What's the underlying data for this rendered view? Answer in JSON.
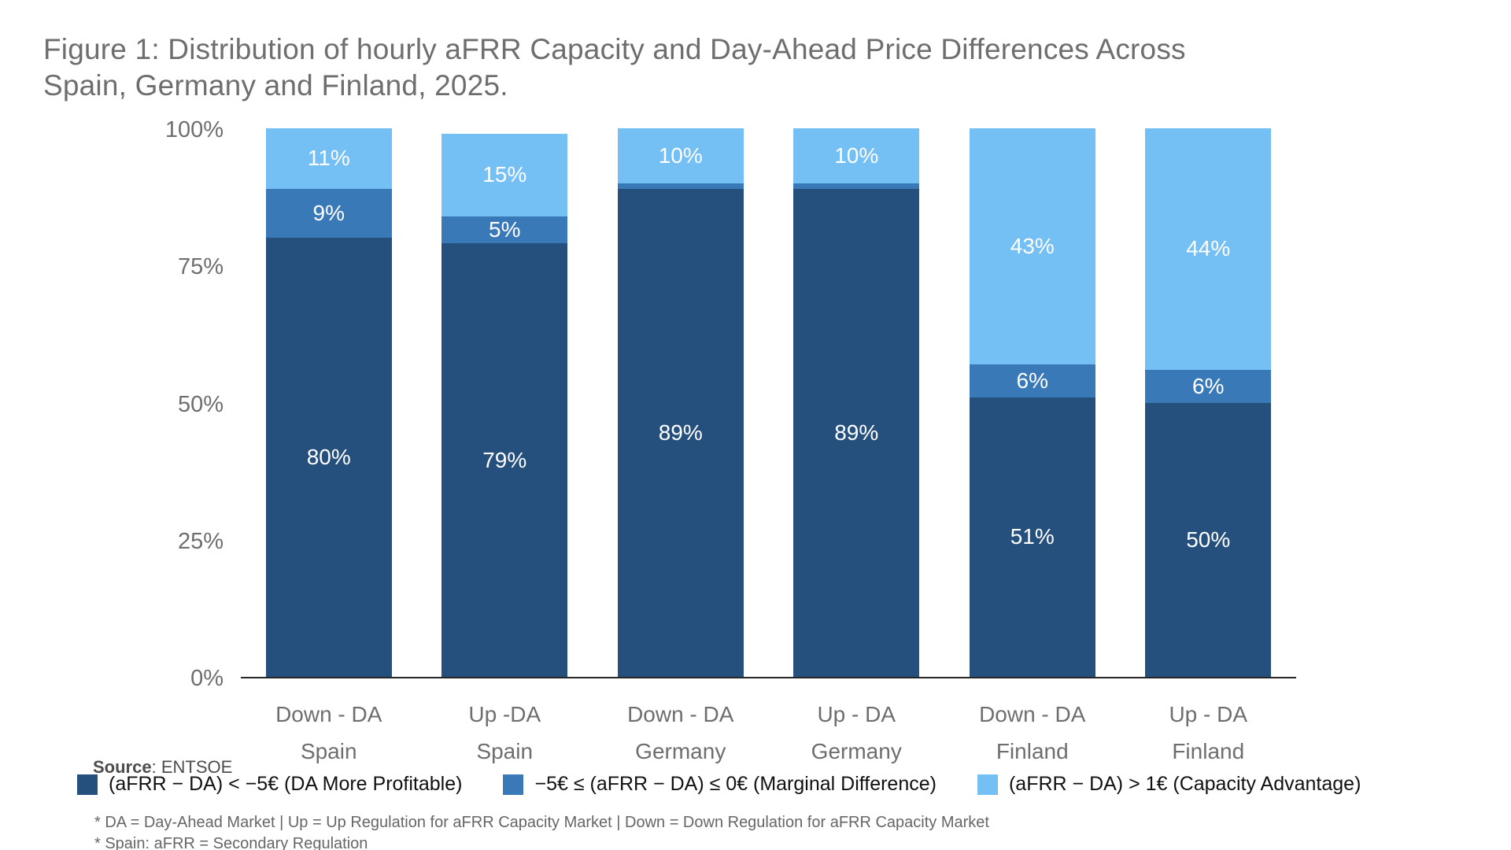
{
  "figure": {
    "title_line1": "Figure 1: Distribution of hourly aFRR Capacity and Day-Ahead Price Differences Across",
    "title_line2": "Spain, Germany and Finland, 2025."
  },
  "source": {
    "label": "Source",
    "separator": ": ",
    "value": "ENTSOE"
  },
  "footnotes": [
    "* DA = Day-Ahead Market | Up = Up Regulation for aFRR Capacity Market | Down = Down Regulation for aFRR Capacity Market",
    "* Spain: aFRR = Secondary Regulation"
  ],
  "chart_data": {
    "type": "bar",
    "stacked": true,
    "orientation": "vertical",
    "title": "Figure 1: Distribution of hourly aFRR Capacity and Day-Ahead Price Differences Across Spain, Germany and Finland, 2025.",
    "categories": [
      [
        "Down - DA",
        "Spain"
      ],
      [
        "Up -DA",
        "Spain"
      ],
      [
        "Down - DA",
        "Germany"
      ],
      [
        "Up - DA",
        "Germany"
      ],
      [
        "Down - DA",
        "Finland"
      ],
      [
        "Up - DA",
        "Finland"
      ]
    ],
    "series": [
      {
        "name": "(aFRR − DA) < −5€ (DA More Profitable)",
        "color": "#25507D",
        "values": [
          80,
          79,
          89,
          89,
          51,
          50
        ]
      },
      {
        "name": "−5€ ≤ (aFRR − DA) ≤ 0€ (Marginal Difference)",
        "color": "#3A79B8",
        "values": [
          9,
          5,
          1,
          1,
          6,
          6
        ]
      },
      {
        "name": "(aFRR − DA) > 1€ (Capacity Advantage)",
        "color": "#74BFF4",
        "values": [
          11,
          15,
          10,
          10,
          43,
          44
        ]
      }
    ],
    "value_label_suffix": "%",
    "ytick_values": [
      0,
      25,
      50,
      75,
      100
    ],
    "ytick_labels": [
      "0%",
      "25%",
      "50%",
      "75%",
      "100%"
    ],
    "ylim": [
      0,
      100
    ],
    "grid": false,
    "legend_position": "bottom"
  }
}
